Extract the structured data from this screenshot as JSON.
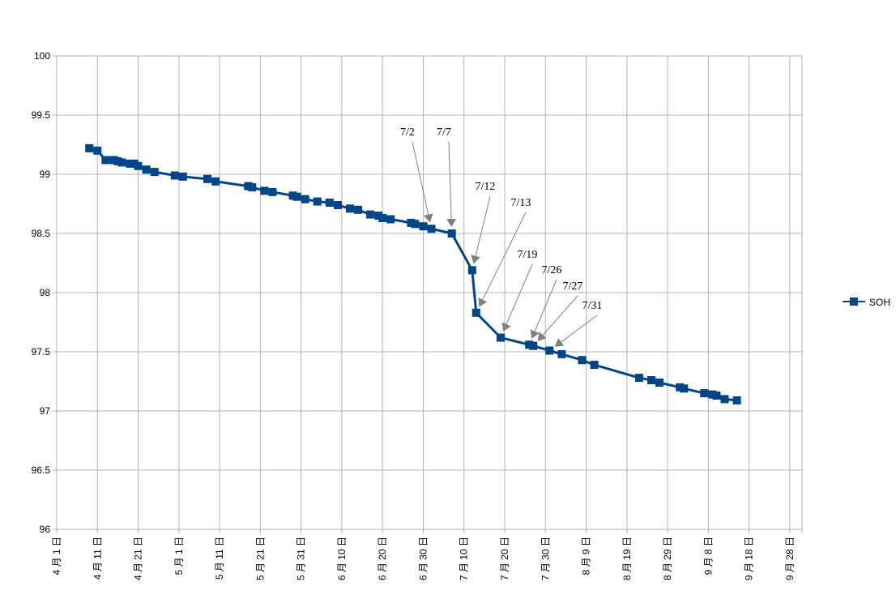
{
  "chart_data": {
    "type": "line",
    "title": "",
    "xlabel": "",
    "ylabel": "",
    "ylim": [
      96,
      100
    ],
    "yticks": [
      "96",
      "96.5",
      "97",
      "97.5",
      "98",
      "98.5",
      "99",
      "99.5",
      "100"
    ],
    "xlim": [
      "2016-04-01",
      "2016-10-01"
    ],
    "xticks": [
      "4 月 1 日",
      "4 月 11 日",
      "4 月 21 日",
      "5 月 1 日",
      "5 月 11 日",
      "5 月 21 日",
      "5 月 31 日",
      "6 月 10 日",
      "6 月 20 日",
      "6 月 30 日",
      "7 月 10 日",
      "7 月 20 日",
      "7 月 30 日",
      "8 月 9 日",
      "8 月 19 日",
      "8 月 29 日",
      "9 月 8 日",
      "9 月 18 日",
      "9 月 28 日"
    ],
    "grid": true,
    "legend": "right",
    "series": [
      {
        "name": "SOH",
        "color": "#004586",
        "marker": "square",
        "points": [
          [
            "2016-04-09",
            99.22
          ],
          [
            "2016-04-11",
            99.2
          ],
          [
            "2016-04-13",
            99.12
          ],
          [
            "2016-04-15",
            99.12
          ],
          [
            "2016-04-16",
            99.11
          ],
          [
            "2016-04-17",
            99.1
          ],
          [
            "2016-04-19",
            99.09
          ],
          [
            "2016-04-20",
            99.09
          ],
          [
            "2016-04-21",
            99.07
          ],
          [
            "2016-04-23",
            99.04
          ],
          [
            "2016-04-25",
            99.02
          ],
          [
            "2016-04-30",
            98.99
          ],
          [
            "2016-05-02",
            98.98
          ],
          [
            "2016-05-08",
            98.96
          ],
          [
            "2016-05-10",
            98.94
          ],
          [
            "2016-05-18",
            98.9
          ],
          [
            "2016-05-19",
            98.89
          ],
          [
            "2016-05-22",
            98.86
          ],
          [
            "2016-05-24",
            98.85
          ],
          [
            "2016-05-29",
            98.82
          ],
          [
            "2016-05-30",
            98.81
          ],
          [
            "2016-06-01",
            98.79
          ],
          [
            "2016-06-04",
            98.77
          ],
          [
            "2016-06-07",
            98.76
          ],
          [
            "2016-06-09",
            98.74
          ],
          [
            "2016-06-12",
            98.71
          ],
          [
            "2016-06-14",
            98.7
          ],
          [
            "2016-06-17",
            98.66
          ],
          [
            "2016-06-19",
            98.65
          ],
          [
            "2016-06-20",
            98.63
          ],
          [
            "2016-06-22",
            98.62
          ],
          [
            "2016-06-27",
            98.59
          ],
          [
            "2016-06-28",
            98.58
          ],
          [
            "2016-06-30",
            98.56
          ],
          [
            "2016-07-02",
            98.54
          ],
          [
            "2016-07-07",
            98.5
          ],
          [
            "2016-07-12",
            98.19
          ],
          [
            "2016-07-13",
            97.83
          ],
          [
            "2016-07-19",
            97.62
          ],
          [
            "2016-07-26",
            97.56
          ],
          [
            "2016-07-27",
            97.55
          ],
          [
            "2016-07-31",
            97.51
          ],
          [
            "2016-08-03",
            97.48
          ],
          [
            "2016-08-08",
            97.43
          ],
          [
            "2016-08-11",
            97.39
          ],
          [
            "2016-08-22",
            97.28
          ],
          [
            "2016-08-25",
            97.26
          ],
          [
            "2016-08-27",
            97.24
          ],
          [
            "2016-09-01",
            97.2
          ],
          [
            "2016-09-02",
            97.19
          ],
          [
            "2016-09-07",
            97.15
          ],
          [
            "2016-09-09",
            97.14
          ],
          [
            "2016-09-10",
            97.13
          ],
          [
            "2016-09-12",
            97.1
          ],
          [
            "2016-09-15",
            97.09
          ]
        ]
      }
    ],
    "annotations": [
      {
        "text": "7/2",
        "target": [
          "2016-07-02",
          98.54
        ]
      },
      {
        "text": "7/7",
        "target": [
          "2016-07-07",
          98.5
        ]
      },
      {
        "text": "7/12",
        "target": [
          "2016-07-12",
          98.19
        ]
      },
      {
        "text": "7/13",
        "target": [
          "2016-07-13",
          97.83
        ]
      },
      {
        "text": "7/19",
        "target": [
          "2016-07-19",
          97.62
        ]
      },
      {
        "text": "7/26",
        "target": [
          "2016-07-26",
          97.56
        ]
      },
      {
        "text": "7/27",
        "target": [
          "2016-07-27",
          97.55
        ]
      },
      {
        "text": "7/31",
        "target": [
          "2016-07-31",
          97.51
        ]
      }
    ],
    "colors": {
      "series": "#004586",
      "grid": "#b3b3b3",
      "arrow": "#808080"
    }
  }
}
